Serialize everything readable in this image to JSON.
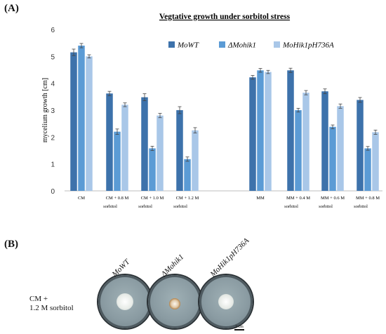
{
  "panel_a_label": "(A)",
  "panel_b_label": "(B)",
  "chart_data": {
    "type": "bar",
    "title": "Vegtative growth under sorbitol stress",
    "ylabel": "mycelium growth [cm]",
    "xlabel": "",
    "ylim": [
      0,
      6
    ],
    "yticks": [
      "0",
      "1",
      "2",
      "3",
      "4",
      "5",
      "6"
    ],
    "grid": false,
    "legend_position": "top-right",
    "categories": [
      {
        "line1": "CM",
        "line2": ""
      },
      {
        "line1": "CM + 0.8 M",
        "line2": "sorbitol"
      },
      {
        "line1": "CM + 1.0 M",
        "line2": "sorbitol"
      },
      {
        "line1": "CM + 1.2 M",
        "line2": "sorbitol"
      },
      {
        "line1": "MM",
        "line2": ""
      },
      {
        "line1": "MM + 0.4 M",
        "line2": "sorbitol"
      },
      {
        "line1": "MM + 0.6 M",
        "line2": "sorbitol"
      },
      {
        "line1": "MM + 0.8 M",
        "line2": "sorbitol"
      }
    ],
    "series": [
      {
        "name": "MoWT",
        "color": "#3d72ab",
        "values": [
          5.15,
          3.62,
          3.48,
          3.0,
          4.22,
          4.48,
          3.7,
          3.38
        ],
        "errors": [
          0.12,
          0.08,
          0.13,
          0.13,
          0.07,
          0.08,
          0.09,
          0.09
        ]
      },
      {
        "name": "ΔMohik1",
        "color": "#5b9bd5",
        "values": [
          5.4,
          2.2,
          1.58,
          1.18,
          4.48,
          3.0,
          2.38,
          1.58
        ],
        "errors": [
          0.08,
          0.1,
          0.08,
          0.08,
          0.07,
          0.07,
          0.07,
          0.07
        ]
      },
      {
        "name": "MoHik1pH736A",
        "color": "#a9c7e8",
        "values": [
          5.0,
          3.2,
          2.8,
          2.25,
          4.42,
          3.65,
          3.15,
          2.18
        ],
        "errors": [
          0.06,
          0.07,
          0.08,
          0.1,
          0.06,
          0.08,
          0.08,
          0.08
        ]
      }
    ]
  },
  "photo_panel": {
    "condition_line1": "CM +",
    "condition_line2": "1.2 M sorbitol",
    "plates": [
      {
        "label": "MoWT"
      },
      {
        "label": "ΔMohik1"
      },
      {
        "label": "MoHik1pH736A"
      }
    ],
    "scale_label": "2 cm"
  }
}
